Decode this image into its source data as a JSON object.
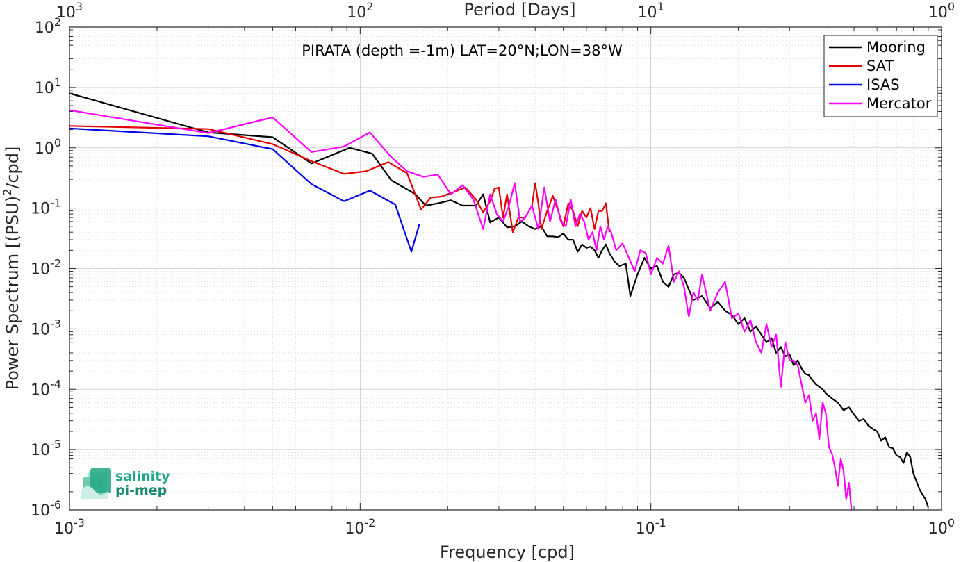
{
  "chart_data": {
    "type": "line",
    "title": "PIRATA (depth =-1m) LAT=20°N;LON=38°W",
    "xlabel": "Frequency [cpd]",
    "ylabel_main": "Power Spectrum [(PSU)",
    "ylabel_sup": "2",
    "ylabel_tail": "/cpd]",
    "top_xlabel": "Period [Days]",
    "xscale": "log",
    "yscale": "log",
    "xlim": [
      0.001,
      1
    ],
    "ylim": [
      1e-06,
      100
    ],
    "grid": true,
    "legend_position": "top-right",
    "x_ticks": [
      {
        "value": 0.001,
        "base": "10",
        "exp": "-3"
      },
      {
        "value": 0.01,
        "base": "10",
        "exp": "-2"
      },
      {
        "value": 0.1,
        "base": "10",
        "exp": "-1"
      },
      {
        "value": 1,
        "base": "10",
        "exp": "0"
      }
    ],
    "top_ticks": [
      {
        "value": 0.001,
        "base": "10",
        "exp": "3"
      },
      {
        "value": 0.01,
        "base": "10",
        "exp": "2"
      },
      {
        "value": 0.1,
        "base": "10",
        "exp": "1"
      },
      {
        "value": 1,
        "base": "10",
        "exp": "0"
      }
    ],
    "y_ticks": [
      {
        "value": 100,
        "base": "10",
        "exp": "2"
      },
      {
        "value": 10,
        "base": "10",
        "exp": "1"
      },
      {
        "value": 1,
        "base": "10",
        "exp": "0"
      },
      {
        "value": 0.1,
        "base": "10",
        "exp": "-1"
      },
      {
        "value": 0.01,
        "base": "10",
        "exp": "-2"
      },
      {
        "value": 0.001,
        "base": "10",
        "exp": "-3"
      },
      {
        "value": 0.0001,
        "base": "10",
        "exp": "-4"
      },
      {
        "value": 1e-05,
        "base": "10",
        "exp": "-5"
      },
      {
        "value": 1e-06,
        "base": "10",
        "exp": "-6"
      }
    ],
    "series": [
      {
        "name": "Mooring",
        "color": "#000000",
        "x": [
          0.001,
          0.003,
          0.005,
          0.0068,
          0.0092,
          0.011,
          0.0128,
          0.0155,
          0.0168,
          0.0185,
          0.0205,
          0.0225,
          0.025,
          0.0265,
          0.028,
          0.03,
          0.032,
          0.034,
          0.036,
          0.038,
          0.04,
          0.042,
          0.044,
          0.046,
          0.048,
          0.05,
          0.052,
          0.054,
          0.056,
          0.058,
          0.06,
          0.062,
          0.064,
          0.066,
          0.068,
          0.07,
          0.072,
          0.075,
          0.078,
          0.082,
          0.085,
          0.09,
          0.095,
          0.1,
          0.105,
          0.11,
          0.115,
          0.12,
          0.125,
          0.13,
          0.135,
          0.14,
          0.15,
          0.16,
          0.17,
          0.18,
          0.19,
          0.2,
          0.21,
          0.22,
          0.23,
          0.24,
          0.25,
          0.26,
          0.27,
          0.28,
          0.29,
          0.3,
          0.31,
          0.32,
          0.33,
          0.34,
          0.35,
          0.36,
          0.37,
          0.38,
          0.39,
          0.4,
          0.42,
          0.44,
          0.46,
          0.48,
          0.5,
          0.52,
          0.54,
          0.56,
          0.58,
          0.6,
          0.62,
          0.64,
          0.66,
          0.68,
          0.7,
          0.72,
          0.74,
          0.76,
          0.78,
          0.8,
          0.82,
          0.84,
          0.86,
          0.88,
          0.9
        ],
        "y": [
          8,
          1.8,
          1.5,
          0.55,
          1.0,
          0.8,
          0.29,
          0.17,
          0.11,
          0.12,
          0.135,
          0.11,
          0.11,
          0.17,
          0.058,
          0.07,
          0.048,
          0.05,
          0.06,
          0.05,
          0.045,
          0.05,
          0.034,
          0.034,
          0.033,
          0.038,
          0.03,
          0.03,
          0.019,
          0.025,
          0.022,
          0.023,
          0.02,
          0.015,
          0.02,
          0.025,
          0.018,
          0.013,
          0.011,
          0.012,
          0.0035,
          0.008,
          0.015,
          0.01,
          0.011,
          0.006,
          0.005,
          0.008,
          0.0085,
          0.007,
          0.0045,
          0.003,
          0.0035,
          0.0022,
          0.0028,
          0.002,
          0.0017,
          0.0012,
          0.0015,
          0.0009,
          0.0011,
          0.0008,
          0.0006,
          0.0007,
          0.0004,
          0.0005,
          0.00035,
          0.00038,
          0.00025,
          0.0003,
          0.00022,
          0.00018,
          0.00017,
          0.00014,
          0.00012,
          0.00011,
          0.0001,
          8.5e-05,
          7e-05,
          6e-05,
          4.5e-05,
          5e-05,
          3.8e-05,
          3e-05,
          3.2e-05,
          2.5e-05,
          2.2e-05,
          2e-05,
          1.4e-05,
          1.6e-05,
          1.1e-05,
          1.05e-05,
          8e-06,
          7.5e-06,
          6e-06,
          9e-06,
          7.5e-06,
          4e-06,
          3e-06,
          2.2e-06,
          1.8e-06,
          1.5e-06,
          1.1e-06
        ]
      },
      {
        "name": "SAT",
        "color": "#e60000",
        "x": [
          0.001,
          0.003,
          0.005,
          0.0068,
          0.0088,
          0.0105,
          0.0125,
          0.0145,
          0.0162,
          0.0175,
          0.019,
          0.021,
          0.023,
          0.025,
          0.0265,
          0.028,
          0.029,
          0.03,
          0.031,
          0.032,
          0.0335,
          0.035,
          0.037,
          0.039,
          0.04,
          0.041,
          0.042,
          0.044,
          0.046,
          0.048,
          0.05,
          0.052,
          0.054,
          0.056,
          0.058,
          0.06,
          0.062,
          0.064,
          0.066,
          0.068,
          0.07,
          0.072
        ],
        "y": [
          2.3,
          2.05,
          1.15,
          0.6,
          0.37,
          0.41,
          0.58,
          0.38,
          0.095,
          0.15,
          0.155,
          0.185,
          0.22,
          0.14,
          0.085,
          0.13,
          0.21,
          0.22,
          0.07,
          0.17,
          0.04,
          0.07,
          0.07,
          0.11,
          0.26,
          0.12,
          0.045,
          0.09,
          0.16,
          0.09,
          0.05,
          0.12,
          0.09,
          0.05,
          0.09,
          0.07,
          0.1,
          0.045,
          0.09,
          0.09,
          0.12,
          0.04
        ]
      },
      {
        "name": "ISAS",
        "color": "#0000e6",
        "x": [
          0.001,
          0.003,
          0.005,
          0.0068,
          0.0088,
          0.0108,
          0.0132,
          0.015,
          0.016
        ],
        "y": [
          2.1,
          1.55,
          0.95,
          0.25,
          0.13,
          0.195,
          0.115,
          0.019,
          0.055
        ]
      },
      {
        "name": "Mercator",
        "color": "#ff00ff",
        "x": [
          0.001,
          0.003,
          0.005,
          0.0068,
          0.0088,
          0.0108,
          0.0128,
          0.0145,
          0.0165,
          0.0185,
          0.0205,
          0.0225,
          0.0245,
          0.0265,
          0.028,
          0.0295,
          0.031,
          0.0325,
          0.034,
          0.0355,
          0.037,
          0.039,
          0.041,
          0.043,
          0.045,
          0.047,
          0.049,
          0.051,
          0.053,
          0.055,
          0.057,
          0.059,
          0.061,
          0.063,
          0.065,
          0.067,
          0.069,
          0.071,
          0.073,
          0.076,
          0.08,
          0.084,
          0.088,
          0.092,
          0.096,
          0.1,
          0.105,
          0.11,
          0.115,
          0.12,
          0.125,
          0.13,
          0.135,
          0.14,
          0.145,
          0.15,
          0.16,
          0.17,
          0.18,
          0.19,
          0.2,
          0.21,
          0.22,
          0.23,
          0.24,
          0.25,
          0.26,
          0.27,
          0.28,
          0.29,
          0.3,
          0.31,
          0.32,
          0.33,
          0.34,
          0.35,
          0.36,
          0.37,
          0.38,
          0.39,
          0.4,
          0.41,
          0.42,
          0.43,
          0.44,
          0.45,
          0.46,
          0.47,
          0.48,
          0.49
        ],
        "y": [
          4.2,
          1.75,
          3.2,
          0.85,
          1.05,
          1.8,
          0.7,
          0.41,
          0.33,
          0.36,
          0.17,
          0.24,
          0.14,
          0.045,
          0.17,
          0.08,
          0.06,
          0.11,
          0.26,
          0.06,
          0.07,
          0.11,
          0.045,
          0.22,
          0.06,
          0.14,
          0.06,
          0.05,
          0.14,
          0.05,
          0.08,
          0.06,
          0.03,
          0.04,
          0.02,
          0.05,
          0.03,
          0.05,
          0.04,
          0.02,
          0.026,
          0.015,
          0.009,
          0.02,
          0.018,
          0.008,
          0.015,
          0.012,
          0.024,
          0.006,
          0.009,
          0.005,
          0.0016,
          0.004,
          0.003,
          0.008,
          0.002,
          0.004,
          0.006,
          0.0015,
          0.0018,
          0.0009,
          0.0014,
          0.0006,
          0.0004,
          0.0012,
          0.0005,
          0.0008,
          0.00011,
          0.0006,
          0.0003,
          0.0003,
          0.00025,
          0.00012,
          6e-05,
          8e-05,
          3e-05,
          4e-05,
          1.5e-05,
          6e-05,
          4e-05,
          1.1e-05,
          8.5e-06,
          5e-06,
          2.5e-06,
          7e-06,
          4.5e-06,
          1.5e-06,
          2.8e-06,
          1e-06
        ]
      }
    ]
  },
  "logo": {
    "line1": "salinity",
    "line2": "pi-mep"
  }
}
